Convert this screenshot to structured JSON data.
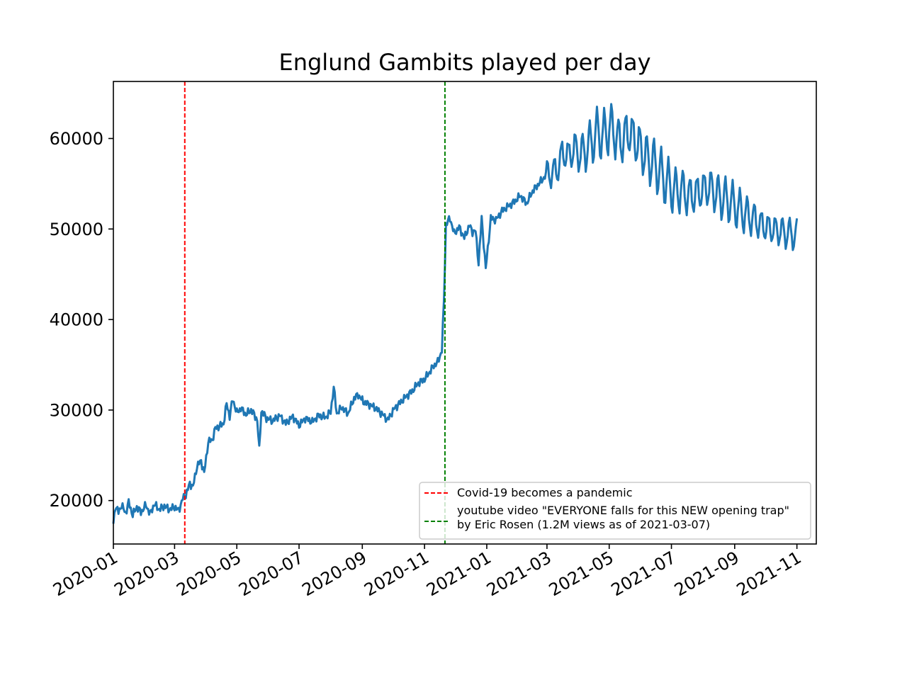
{
  "chart_data": {
    "type": "line",
    "title": "Englund Gambits played per day",
    "xlabel": "",
    "ylabel": "",
    "x_range": [
      "2020-01-01",
      "2021-11-20"
    ],
    "ylim": [
      15200,
      66300
    ],
    "grid": false,
    "legend_position": "lower-right",
    "y_ticks": [
      20000,
      30000,
      40000,
      50000,
      60000
    ],
    "y_tick_labels": [
      "20000",
      "30000",
      "40000",
      "50000",
      "60000"
    ],
    "x_ticks": [
      "2020-01-01",
      "2020-03-01",
      "2020-05-01",
      "2020-07-01",
      "2020-09-01",
      "2020-11-01",
      "2021-01-01",
      "2021-03-01",
      "2021-05-01",
      "2021-07-01",
      "2021-09-01",
      "2021-11-01"
    ],
    "x_tick_labels": [
      "2020-01",
      "2020-03",
      "2020-05",
      "2020-07",
      "2020-09",
      "2020-11",
      "2021-01",
      "2021-03",
      "2021-05",
      "2021-07",
      "2021-09",
      "2021-11"
    ],
    "series": [
      {
        "color": "#1f77b4",
        "points": [
          [
            "2020-01-01",
            17500
          ],
          [
            "2020-01-03",
            19400
          ],
          [
            "2020-01-06",
            18700
          ],
          [
            "2020-01-09",
            19500
          ],
          [
            "2020-01-13",
            18600
          ],
          [
            "2020-01-16",
            19800
          ],
          [
            "2020-01-20",
            18400
          ],
          [
            "2020-01-24",
            19300
          ],
          [
            "2020-01-28",
            18700
          ],
          [
            "2020-02-02",
            19500
          ],
          [
            "2020-02-06",
            18500
          ],
          [
            "2020-02-10",
            19600
          ],
          [
            "2020-02-15",
            19000
          ],
          [
            "2020-02-20",
            19400
          ],
          [
            "2020-02-25",
            19000
          ],
          [
            "2020-03-01",
            19300
          ],
          [
            "2020-03-05",
            18900
          ],
          [
            "2020-03-09",
            20200
          ],
          [
            "2020-03-12",
            20600
          ],
          [
            "2020-03-16",
            21900
          ],
          [
            "2020-03-19",
            21500
          ],
          [
            "2020-03-23",
            23800
          ],
          [
            "2020-03-27",
            24400
          ],
          [
            "2020-03-30",
            23000
          ],
          [
            "2020-04-03",
            26500
          ],
          [
            "2020-04-07",
            26700
          ],
          [
            "2020-04-10",
            28000
          ],
          [
            "2020-04-14",
            28200
          ],
          [
            "2020-04-18",
            28500
          ],
          [
            "2020-04-21",
            30700
          ],
          [
            "2020-04-24",
            29300
          ],
          [
            "2020-04-27",
            31200
          ],
          [
            "2020-05-01",
            29700
          ],
          [
            "2020-05-05",
            30200
          ],
          [
            "2020-05-10",
            29500
          ],
          [
            "2020-05-15",
            30000
          ],
          [
            "2020-05-18",
            29500
          ],
          [
            "2020-05-21",
            28900
          ],
          [
            "2020-05-23",
            25600
          ],
          [
            "2020-05-25",
            29900
          ],
          [
            "2020-05-30",
            29100
          ],
          [
            "2020-06-05",
            28800
          ],
          [
            "2020-06-12",
            29400
          ],
          [
            "2020-06-18",
            28500
          ],
          [
            "2020-06-25",
            29300
          ],
          [
            "2020-07-01",
            28300
          ],
          [
            "2020-07-07",
            29100
          ],
          [
            "2020-07-14",
            28700
          ],
          [
            "2020-07-20",
            29400
          ],
          [
            "2020-07-27",
            29200
          ],
          [
            "2020-08-01",
            29800
          ],
          [
            "2020-08-04",
            32500
          ],
          [
            "2020-08-07",
            29600
          ],
          [
            "2020-08-12",
            30300
          ],
          [
            "2020-08-18",
            29600
          ],
          [
            "2020-08-24",
            31300
          ],
          [
            "2020-08-28",
            31700
          ],
          [
            "2020-09-02",
            30900
          ],
          [
            "2020-09-08",
            30600
          ],
          [
            "2020-09-14",
            30200
          ],
          [
            "2020-09-20",
            29600
          ],
          [
            "2020-09-26",
            28900
          ],
          [
            "2020-10-02",
            30100
          ],
          [
            "2020-10-08",
            30800
          ],
          [
            "2020-10-14",
            31500
          ],
          [
            "2020-10-20",
            32100
          ],
          [
            "2020-10-26",
            33000
          ],
          [
            "2020-11-01",
            33400
          ],
          [
            "2020-11-06",
            34200
          ],
          [
            "2020-11-10",
            34900
          ],
          [
            "2020-11-14",
            35300
          ],
          [
            "2020-11-18",
            36600
          ],
          [
            "2020-11-20",
            42000
          ],
          [
            "2020-11-22",
            50500
          ],
          [
            "2020-11-26",
            51200
          ],
          [
            "2020-11-30",
            49500
          ],
          [
            "2020-12-05",
            50200
          ],
          [
            "2020-12-10",
            49000
          ],
          [
            "2020-12-15",
            50400
          ],
          [
            "2020-12-18",
            49700
          ],
          [
            "2020-12-21",
            49800
          ],
          [
            "2020-12-24",
            46200
          ],
          [
            "2020-12-27",
            51200
          ],
          [
            "2020-12-31",
            45600
          ],
          [
            "2021-01-05",
            51200
          ],
          [
            "2021-01-10",
            51000
          ],
          [
            "2021-01-16",
            52000
          ],
          [
            "2021-01-22",
            52500
          ],
          [
            "2021-01-28",
            53000
          ],
          [
            "2021-02-03",
            53700
          ],
          [
            "2021-02-09",
            52800
          ],
          [
            "2021-02-15",
            54200
          ],
          [
            "2021-02-21",
            55000
          ],
          [
            "2021-02-27",
            55800
          ],
          [
            "2021-03-05",
            56200
          ],
          [
            "2021-03-11",
            56500
          ],
          [
            "2021-03-16",
            58400
          ],
          [
            "2021-03-22",
            58100
          ],
          [
            "2021-03-28",
            58900
          ],
          [
            "2021-04-03",
            58200
          ],
          [
            "2021-04-09",
            58900
          ],
          [
            "2021-04-15",
            59900
          ],
          [
            "2021-04-20",
            60700
          ],
          [
            "2021-04-25",
            60200
          ],
          [
            "2021-05-01",
            61200
          ],
          [
            "2021-05-06",
            60800
          ],
          [
            "2021-05-11",
            59500
          ],
          [
            "2021-05-16",
            60200
          ],
          [
            "2021-05-21",
            60800
          ],
          [
            "2021-05-26",
            59800
          ],
          [
            "2021-05-31",
            59100
          ],
          [
            "2021-06-05",
            58100
          ],
          [
            "2021-06-10",
            57600
          ],
          [
            "2021-06-15",
            57100
          ],
          [
            "2021-06-20",
            56200
          ],
          [
            "2021-06-26",
            55200
          ],
          [
            "2021-07-01",
            54600
          ],
          [
            "2021-07-05",
            54100
          ],
          [
            "2021-07-10",
            54400
          ],
          [
            "2021-07-15",
            53900
          ],
          [
            "2021-07-20",
            53600
          ],
          [
            "2021-07-25",
            53900
          ],
          [
            "2021-07-30",
            54200
          ],
          [
            "2021-08-05",
            54600
          ],
          [
            "2021-08-10",
            54400
          ],
          [
            "2021-08-15",
            53800
          ],
          [
            "2021-08-20",
            53400
          ],
          [
            "2021-08-25",
            53200
          ],
          [
            "2021-08-30",
            52800
          ],
          [
            "2021-09-05",
            52200
          ],
          [
            "2021-09-10",
            51800
          ],
          [
            "2021-09-15",
            51400
          ],
          [
            "2021-09-20",
            51100
          ],
          [
            "2021-09-25",
            50600
          ],
          [
            "2021-09-30",
            50300
          ],
          [
            "2021-10-05",
            50100
          ],
          [
            "2021-10-10",
            49900
          ],
          [
            "2021-10-15",
            49800
          ],
          [
            "2021-10-20",
            49600
          ],
          [
            "2021-10-25",
            49500
          ],
          [
            "2021-10-29",
            49400
          ],
          [
            "2021-11-01",
            49300
          ]
        ],
        "daily_swing": [
          [
            "2021-03-01",
            2000
          ],
          [
            "2021-04-20",
            3000
          ],
          [
            "2021-05-20",
            3600
          ],
          [
            "2021-07-01",
            3000
          ],
          [
            "2021-08-15",
            2800
          ],
          [
            "2021-09-20",
            2400
          ],
          [
            "2021-11-01",
            1900
          ]
        ]
      }
    ],
    "vlines": [
      {
        "x": "2020-03-11",
        "color": "#ff0000",
        "style": "dashed",
        "label": "Covid-19 becomes a pandemic"
      },
      {
        "x": "2020-11-21",
        "color": "#008000",
        "style": "dashed",
        "label": "youtube video \"EVERYONE falls for this NEW opening trap\"\nby Eric Rosen (1.2M views as of 2021-03-07)"
      }
    ]
  }
}
